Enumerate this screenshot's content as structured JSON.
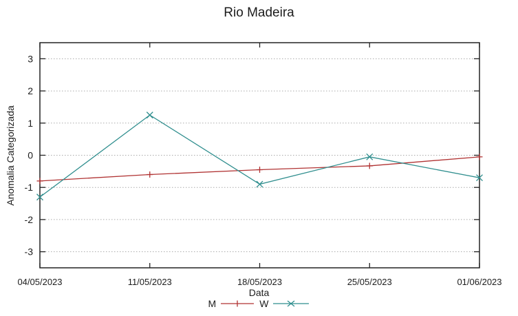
{
  "title": "Rio Madeira",
  "colors": {
    "series_m": "#b03232",
    "series_w": "#2f8e8e",
    "grid": "#aaaaaa",
    "border": "#222222",
    "text": "#1c1c1c",
    "background": "#ffffff"
  },
  "legend": {
    "entries": [
      {
        "label": "M",
        "marker": "plus-line-sample"
      },
      {
        "label": "W",
        "marker": "x-line-sample"
      }
    ]
  },
  "chart_data": {
    "type": "line",
    "title": "Rio Madeira",
    "xlabel": "Data",
    "ylabel": "Anomalia Categorizada",
    "categories": [
      "04/05/2023",
      "11/05/2023",
      "18/05/2023",
      "25/05/2023",
      "01/06/2023"
    ],
    "ylim": [
      -3.5,
      3.5
    ],
    "yticks": [
      -3,
      -2,
      -1,
      0,
      1,
      2,
      3
    ],
    "grid": "horizontal-dotted",
    "legend_position": "bottom-center",
    "series": [
      {
        "name": "M",
        "color": "#b03232",
        "marker": "plus",
        "values": [
          -0.8,
          -0.6,
          -0.45,
          -0.33,
          -0.05
        ]
      },
      {
        "name": "W",
        "color": "#2f8e8e",
        "marker": "x",
        "values": [
          -1.3,
          1.25,
          -0.9,
          -0.05,
          -0.7
        ]
      }
    ]
  }
}
